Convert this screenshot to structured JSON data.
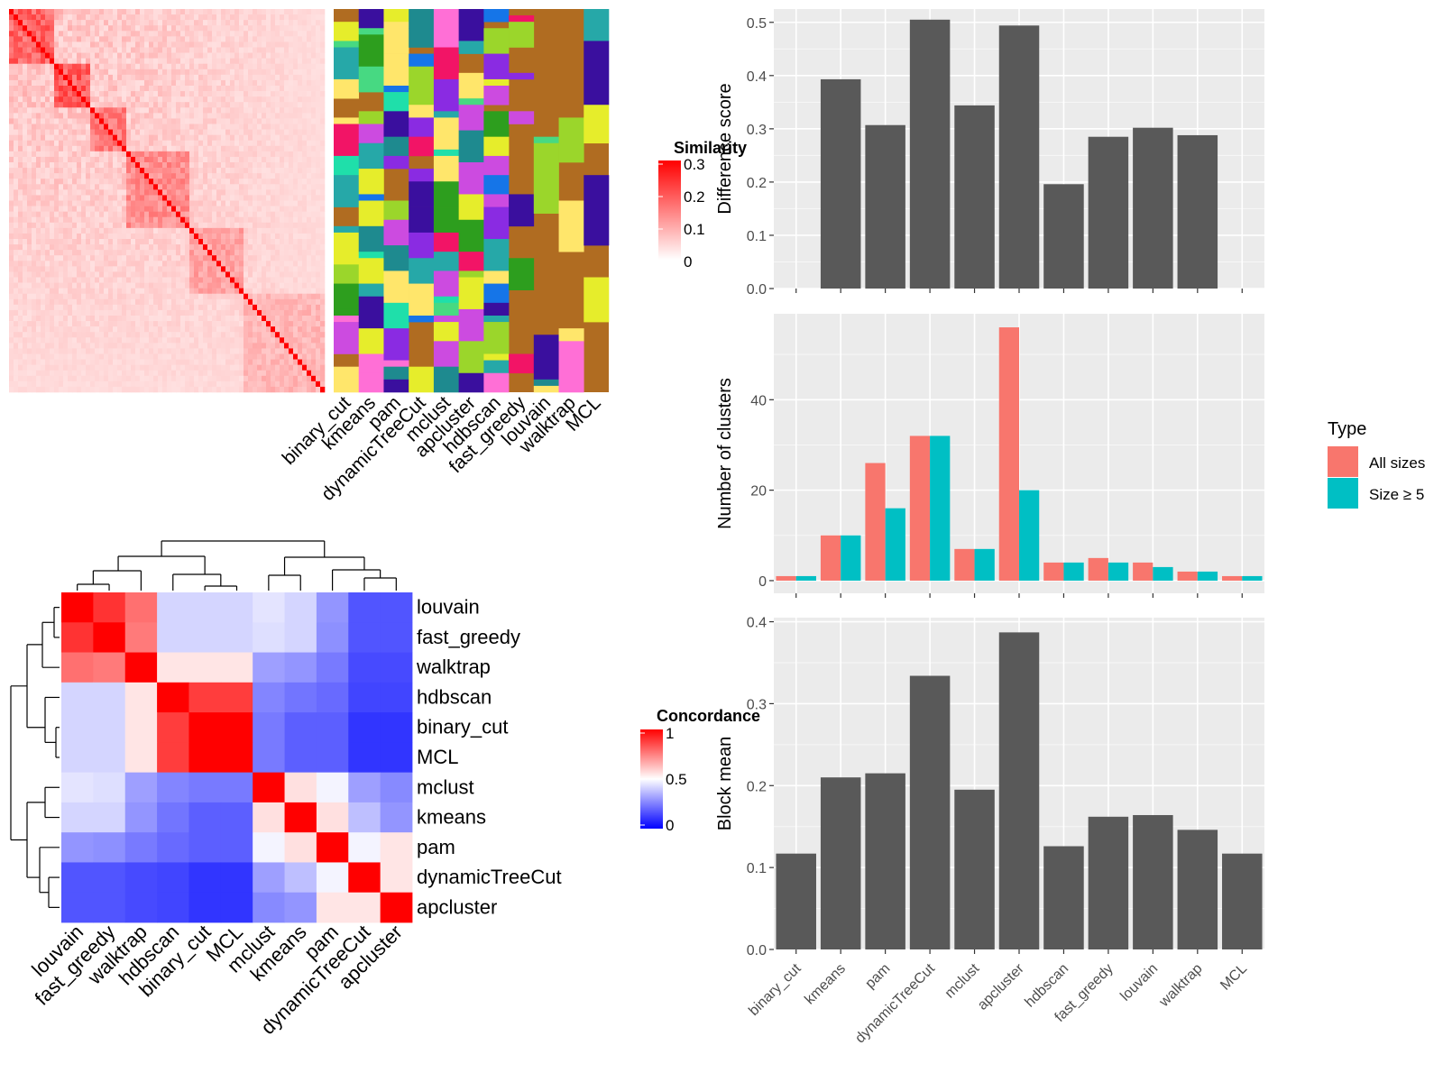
{
  "colors": {
    "panel_bg": "#ebebeb",
    "grid": "#ffffff",
    "bar": "#595959",
    "all_sizes": "#f8766d",
    "size_ge5": "#00bfc4",
    "heat_high": "#ff0000",
    "heat_mid": "#ffffff",
    "heat_low": "#0000ff",
    "brown_bg": "#b06c21"
  },
  "methods_order": [
    "binary_cut",
    "kmeans",
    "pam",
    "dynamicTreeCut",
    "mclust",
    "apcluster",
    "hdbscan",
    "fast_greedy",
    "louvain",
    "walktrap",
    "MCL"
  ],
  "similarity_legend": {
    "title": "Similarity",
    "ticks": [
      "0.3",
      "0.2",
      "0.1",
      "0"
    ]
  },
  "concordance_legend": {
    "title": "Concordance",
    "ticks": [
      "1",
      "0.5",
      "0"
    ]
  },
  "legend_type": {
    "title": "Type",
    "items": [
      "All sizes",
      "Size ≥ 5"
    ]
  },
  "chart_data": [
    {
      "type": "bar",
      "name": "difference_score",
      "categories": [
        "binary_cut",
        "kmeans",
        "pam",
        "dynamicTreeCut",
        "mclust",
        "apcluster",
        "hdbscan",
        "fast_greedy",
        "louvain",
        "walktrap",
        "MCL"
      ],
      "values": [
        0,
        0.393,
        0.307,
        0.505,
        0.344,
        0.494,
        0.196,
        0.285,
        0.302,
        0.288,
        0
      ],
      "ylabel": "Difference score",
      "ylim": [
        0,
        0.525
      ],
      "yticks": [
        0.0,
        0.1,
        0.2,
        0.3,
        0.4,
        0.5
      ],
      "ytick_labels": [
        "0.0",
        "0.1",
        "0.2",
        "0.3",
        "0.4",
        "0.5"
      ]
    },
    {
      "type": "bar",
      "name": "number_of_clusters",
      "categories": [
        "binary_cut",
        "kmeans",
        "pam",
        "dynamicTreeCut",
        "mclust",
        "apcluster",
        "hdbscan",
        "fast_greedy",
        "louvain",
        "walktrap",
        "MCL"
      ],
      "series": [
        {
          "name": "All sizes",
          "values": [
            1,
            10,
            26,
            32,
            7,
            56,
            4,
            5,
            4,
            2,
            1
          ]
        },
        {
          "name": "Size ≥ 5",
          "values": [
            1,
            10,
            16,
            32,
            7,
            20,
            4,
            4,
            3,
            2,
            1
          ]
        }
      ],
      "ylabel": "Number of clusters",
      "ylim": [
        -2.8,
        59
      ],
      "yticks": [
        0,
        20,
        40
      ],
      "ytick_labels": [
        "0",
        "20",
        "40"
      ]
    },
    {
      "type": "bar",
      "name": "block_mean",
      "categories": [
        "binary_cut",
        "kmeans",
        "pam",
        "dynamicTreeCut",
        "mclust",
        "apcluster",
        "hdbscan",
        "fast_greedy",
        "louvain",
        "walktrap",
        "MCL"
      ],
      "values": [
        0.117,
        0.21,
        0.215,
        0.334,
        0.195,
        0.387,
        0.126,
        0.162,
        0.164,
        0.146,
        0.117
      ],
      "ylabel": "Block mean",
      "ylim": [
        0,
        0.405
      ],
      "yticks": [
        0.0,
        0.1,
        0.2,
        0.3,
        0.4
      ],
      "ytick_labels": [
        "0.0",
        "0.1",
        "0.2",
        "0.3",
        "0.4"
      ]
    },
    {
      "type": "heatmap",
      "name": "concordance",
      "rows": [
        "louvain",
        "fast_greedy",
        "walktrap",
        "hdbscan",
        "binary_cut",
        "MCL",
        "mclust",
        "kmeans",
        "pam",
        "dynamicTreeCut",
        "apcluster"
      ],
      "cols": [
        "louvain",
        "fast_greedy",
        "walktrap",
        "hdbscan",
        "binary_cut",
        "MCL",
        "mclust",
        "kmeans",
        "pam",
        "dynamicTreeCut",
        "apcluster"
      ],
      "values": [
        [
          1.0,
          0.9,
          0.78,
          0.42,
          0.42,
          0.42,
          0.45,
          0.42,
          0.3,
          0.18,
          0.18
        ],
        [
          0.9,
          1.0,
          0.76,
          0.42,
          0.42,
          0.42,
          0.44,
          0.42,
          0.29,
          0.18,
          0.18
        ],
        [
          0.78,
          0.76,
          1.0,
          0.55,
          0.55,
          0.55,
          0.32,
          0.3,
          0.25,
          0.16,
          0.16
        ],
        [
          0.42,
          0.42,
          0.55,
          1.0,
          0.88,
          0.88,
          0.27,
          0.24,
          0.22,
          0.15,
          0.15
        ],
        [
          0.42,
          0.42,
          0.55,
          0.88,
          1.0,
          1.0,
          0.25,
          0.2,
          0.2,
          0.12,
          0.12
        ],
        [
          0.42,
          0.42,
          0.55,
          0.88,
          1.0,
          1.0,
          0.25,
          0.2,
          0.2,
          0.12,
          0.12
        ],
        [
          0.45,
          0.44,
          0.32,
          0.27,
          0.25,
          0.25,
          1.0,
          0.56,
          0.48,
          0.32,
          0.28
        ],
        [
          0.42,
          0.42,
          0.3,
          0.24,
          0.2,
          0.2,
          0.56,
          1.0,
          0.56,
          0.38,
          0.3
        ],
        [
          0.3,
          0.29,
          0.25,
          0.22,
          0.2,
          0.2,
          0.48,
          0.56,
          1.0,
          0.48,
          0.55
        ],
        [
          0.18,
          0.18,
          0.16,
          0.15,
          0.12,
          0.12,
          0.32,
          0.38,
          0.48,
          1.0,
          0.55
        ],
        [
          0.18,
          0.18,
          0.16,
          0.15,
          0.12,
          0.12,
          0.28,
          0.3,
          0.55,
          0.55,
          1.0
        ]
      ]
    }
  ],
  "membership_labels": [
    "binary_cut",
    "kmeans",
    "pam",
    "dynamicTreeCut",
    "mclust",
    "apcluster",
    "hdbscan",
    "fast_greedy",
    "louvain",
    "walktrap",
    "MCL"
  ]
}
